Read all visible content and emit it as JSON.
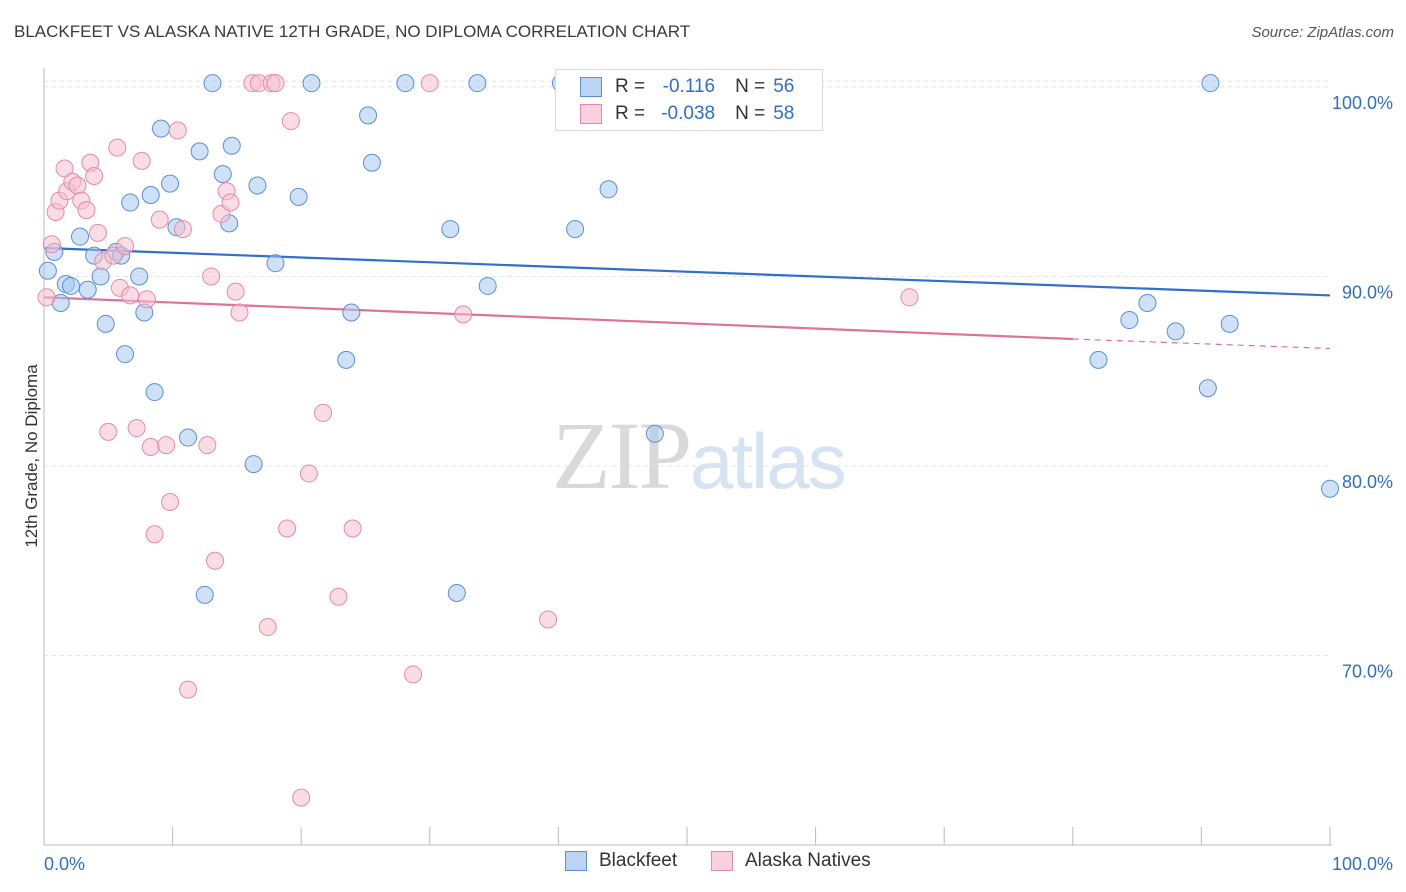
{
  "chart_data": {
    "type": "scatter",
    "title": "BLACKFEET VS ALASKA NATIVE 12TH GRADE, NO DIPLOMA CORRELATION CHART",
    "source": "Source: ZipAtlas.com",
    "ylabel": "12th Grade, No Diploma",
    "xlabel": "",
    "xlim": [
      0,
      100
    ],
    "ylim": [
      60,
      101
    ],
    "x_tick_labels": [
      "0.0%",
      "100.0%"
    ],
    "y_tick_labels": [
      "100.0%",
      "90.0%",
      "80.0%",
      "70.0%"
    ],
    "y_ticks": [
      100,
      90,
      80,
      70
    ],
    "grid": true,
    "legend_position": "top-center",
    "watermark": {
      "zip": "ZIP",
      "atlas": "atlas"
    },
    "series": [
      {
        "name": "Blackfeet",
        "color": "#a8c8ef",
        "stroke": "#5b8fd6",
        "trend_color": "#3070c8",
        "R_label": "R =",
        "R": "-0.116",
        "N_label": "N =",
        "N": "56",
        "trend": {
          "x0": 0,
          "y0": 91.5,
          "x1": 100,
          "y1": 89.0
        },
        "points": [
          [
            0.3,
            90.3
          ],
          [
            0.8,
            91.3
          ],
          [
            1.3,
            88.6
          ],
          [
            1.7,
            89.6
          ],
          [
            2.1,
            89.5
          ],
          [
            2.8,
            92.1
          ],
          [
            3.4,
            89.3
          ],
          [
            3.9,
            91.1
          ],
          [
            4.4,
            90.0
          ],
          [
            4.8,
            87.5
          ],
          [
            5.6,
            91.3
          ],
          [
            6.0,
            91.1
          ],
          [
            6.3,
            85.9
          ],
          [
            6.7,
            93.9
          ],
          [
            7.4,
            90.0
          ],
          [
            7.8,
            88.1
          ],
          [
            8.3,
            94.3
          ],
          [
            8.6,
            83.9
          ],
          [
            9.1,
            97.8
          ],
          [
            9.8,
            94.9
          ],
          [
            10.3,
            92.6
          ],
          [
            11.2,
            81.5
          ],
          [
            12.1,
            96.6
          ],
          [
            12.5,
            73.2
          ],
          [
            13.1,
            100.2
          ],
          [
            13.9,
            95.4
          ],
          [
            14.4,
            92.8
          ],
          [
            14.6,
            96.9
          ],
          [
            16.3,
            80.1
          ],
          [
            16.6,
            94.8
          ],
          [
            18.0,
            90.7
          ],
          [
            19.8,
            94.2
          ],
          [
            20.8,
            100.2
          ],
          [
            23.5,
            85.6
          ],
          [
            23.9,
            88.1
          ],
          [
            25.2,
            98.5
          ],
          [
            25.5,
            96.0
          ],
          [
            28.1,
            100.2
          ],
          [
            31.6,
            92.5
          ],
          [
            32.1,
            73.3
          ],
          [
            33.7,
            100.2
          ],
          [
            34.5,
            89.5
          ],
          [
            40.2,
            100.2
          ],
          [
            41.3,
            92.5
          ],
          [
            43.9,
            94.6
          ],
          [
            47.2,
            100.2
          ],
          [
            47.5,
            81.7
          ],
          [
            50.0,
            100.2
          ],
          [
            82.0,
            85.6
          ],
          [
            84.4,
            87.7
          ],
          [
            85.8,
            88.6
          ],
          [
            88.0,
            87.1
          ],
          [
            90.5,
            84.1
          ],
          [
            90.7,
            100.2
          ],
          [
            92.2,
            87.5
          ],
          [
            100.0,
            78.8
          ]
        ]
      },
      {
        "name": "Alaska Natives",
        "color": "#f6bfd0",
        "stroke": "#e58aa9",
        "trend_color": "#e0719b",
        "R_label": "R =",
        "R": "-0.038",
        "N_label": "N =",
        "N": "58",
        "trend": {
          "x0": 0,
          "y0": 88.9,
          "x1": 80,
          "y1": 86.7
        },
        "trend_dashed": {
          "x0": 80,
          "y0": 86.7,
          "x1": 100,
          "y1": 86.2
        },
        "points": [
          [
            0.2,
            88.9
          ],
          [
            0.6,
            91.7
          ],
          [
            0.9,
            93.4
          ],
          [
            1.2,
            94.0
          ],
          [
            1.6,
            95.7
          ],
          [
            1.8,
            94.5
          ],
          [
            2.2,
            95.0
          ],
          [
            2.6,
            94.8
          ],
          [
            2.9,
            94.0
          ],
          [
            3.3,
            93.5
          ],
          [
            3.6,
            96.0
          ],
          [
            3.9,
            95.3
          ],
          [
            4.2,
            92.3
          ],
          [
            4.6,
            90.8
          ],
          [
            5.0,
            81.8
          ],
          [
            5.4,
            91.1
          ],
          [
            5.7,
            96.8
          ],
          [
            5.9,
            89.4
          ],
          [
            6.3,
            91.6
          ],
          [
            6.7,
            89.0
          ],
          [
            7.2,
            82.0
          ],
          [
            7.6,
            96.1
          ],
          [
            8.0,
            88.8
          ],
          [
            8.3,
            81.0
          ],
          [
            8.6,
            76.4
          ],
          [
            9.0,
            93.0
          ],
          [
            9.5,
            81.1
          ],
          [
            9.8,
            78.1
          ],
          [
            10.4,
            97.7
          ],
          [
            10.8,
            92.5
          ],
          [
            11.2,
            68.2
          ],
          [
            12.7,
            81.1
          ],
          [
            13.0,
            90.0
          ],
          [
            13.3,
            75.0
          ],
          [
            13.8,
            93.3
          ],
          [
            14.2,
            94.5
          ],
          [
            14.5,
            93.9
          ],
          [
            14.9,
            89.2
          ],
          [
            15.2,
            88.1
          ],
          [
            16.2,
            100.2
          ],
          [
            16.7,
            100.2
          ],
          [
            17.4,
            71.5
          ],
          [
            17.7,
            100.2
          ],
          [
            18.0,
            100.2
          ],
          [
            18.9,
            76.7
          ],
          [
            19.2,
            98.2
          ],
          [
            20.0,
            62.5
          ],
          [
            20.6,
            79.6
          ],
          [
            21.7,
            82.8
          ],
          [
            22.9,
            73.1
          ],
          [
            24.0,
            76.7
          ],
          [
            28.7,
            69.0
          ],
          [
            30.0,
            100.2
          ],
          [
            32.6,
            88.0
          ],
          [
            39.2,
            71.9
          ],
          [
            41.0,
            100.2
          ],
          [
            45.0,
            100.2
          ],
          [
            67.3,
            88.9
          ]
        ]
      }
    ]
  }
}
